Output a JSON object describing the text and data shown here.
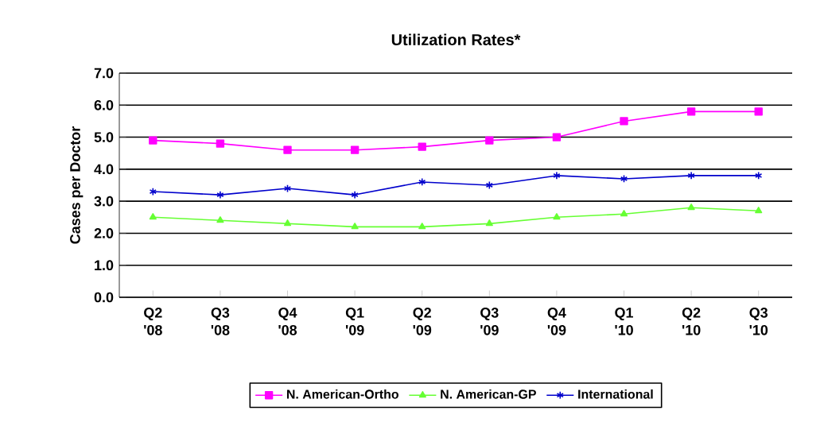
{
  "chart_data": {
    "type": "line",
    "title": "Utilization Rates*",
    "ylabel": "Cases per Doctor",
    "categories": [
      "Q2 '08",
      "Q3 '08",
      "Q4 '08",
      "Q1 '09",
      "Q2 '09",
      "Q3 '09",
      "Q4 '09",
      "Q1 '10",
      "Q2 '10",
      "Q3 '10"
    ],
    "series": [
      {
        "name": "N. American-Ortho",
        "color": "#ff00ff",
        "marker": "square",
        "values": [
          4.9,
          4.8,
          4.6,
          4.6,
          4.7,
          4.9,
          5.0,
          5.5,
          5.8,
          5.8
        ]
      },
      {
        "name": "N. American-GP",
        "color": "#66ff33",
        "marker": "triangle",
        "values": [
          2.5,
          2.4,
          2.3,
          2.2,
          2.2,
          2.3,
          2.5,
          2.6,
          2.8,
          2.7
        ]
      },
      {
        "name": "International",
        "color": "#0000cc",
        "marker": "cross",
        "values": [
          3.3,
          3.2,
          3.4,
          3.2,
          3.6,
          3.5,
          3.8,
          3.7,
          3.8,
          3.8
        ]
      }
    ],
    "ylim": [
      0,
      7
    ],
    "yticks": [
      {
        "value": 0,
        "label": "0.0"
      },
      {
        "value": 1,
        "label": "1.0"
      },
      {
        "value": 2,
        "label": "2.0"
      },
      {
        "value": 3,
        "label": "3.0"
      },
      {
        "value": 4,
        "label": "4.0"
      },
      {
        "value": 5,
        "label": "5.0"
      },
      {
        "value": 6,
        "label": "6.0"
      },
      {
        "value": 7,
        "label": "7.0"
      }
    ],
    "grid": "y",
    "legend": "bottom",
    "line_style": "solid"
  }
}
